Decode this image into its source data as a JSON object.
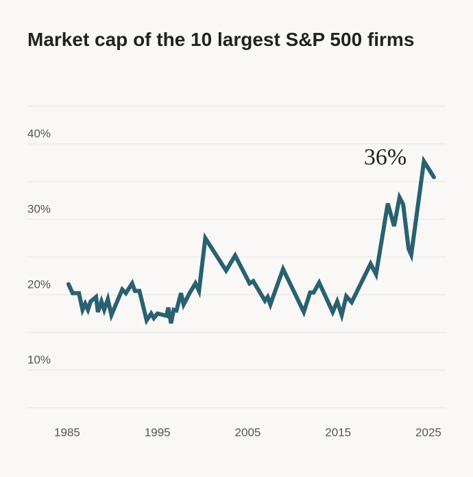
{
  "chart_data": {
    "type": "line",
    "title": "Market cap of the 10 largest S&P 500 firms",
    "annotation": "36%",
    "color": "#2a6170",
    "x": [
      1985.15,
      1985.6,
      1986.3,
      1986.7,
      1987.0,
      1987.3,
      1987.6,
      1988.2,
      1988.4,
      1988.8,
      1989.1,
      1989.5,
      1989.9,
      1991.1,
      1991.5,
      1992.2,
      1992.5,
      1993.0,
      1993.8,
      1994.3,
      1994.6,
      1995.0,
      1996.0,
      1996.2,
      1996.5,
      1996.8,
      1997.1,
      1997.6,
      1997.9,
      1998.6,
      1999.2,
      1999.6,
      2000.3,
      2002.6,
      2003.6,
      2005.2,
      2005.6,
      2006.9,
      2007.2,
      2007.5,
      2008.9,
      2011.2,
      2011.9,
      2012.3,
      2012.9,
      2014.4,
      2014.9,
      2015.4,
      2015.9,
      2016.5,
      2018.6,
      2019.2,
      2020.5,
      2021.2,
      2021.8,
      2022.2,
      2022.8,
      2023.1,
      2024.5,
      2025.6
    ],
    "values": [
      21.4,
      20.2,
      20.2,
      18.0,
      18.8,
      18.0,
      19.1,
      19.7,
      17.7,
      19.1,
      18.0,
      19.4,
      17.3,
      20.7,
      20.2,
      21.5,
      20.5,
      20.5,
      16.6,
      17.5,
      16.9,
      17.5,
      17.2,
      18.3,
      16.2,
      18.0,
      17.9,
      20.2,
      18.7,
      20.3,
      21.5,
      20.5,
      27.5,
      23.2,
      25.2,
      21.5,
      21.8,
      19.2,
      19.7,
      18.7,
      23.4,
      17.7,
      20.3,
      20.3,
      21.6,
      17.7,
      19.1,
      17.3,
      19.8,
      19.0,
      24.1,
      22.7,
      32.1,
      29.1,
      32.9,
      32.0,
      26.1,
      25.3,
      37.7,
      35.6
    ],
    "xlim": [
      1980.6,
      2026.9
    ],
    "xticks": [
      1985,
      1995,
      2005,
      2015,
      2025
    ],
    "ylim": [
      5,
      45
    ],
    "yticks": [
      {
        "value": 10,
        "label": "10%"
      },
      {
        "value": 20,
        "label": "20%"
      },
      {
        "value": 30,
        "label": "30%"
      },
      {
        "value": 40,
        "label": "40%"
      }
    ],
    "minor_yticks": [
      5,
      15,
      25,
      35,
      45
    ],
    "grid": true
  }
}
